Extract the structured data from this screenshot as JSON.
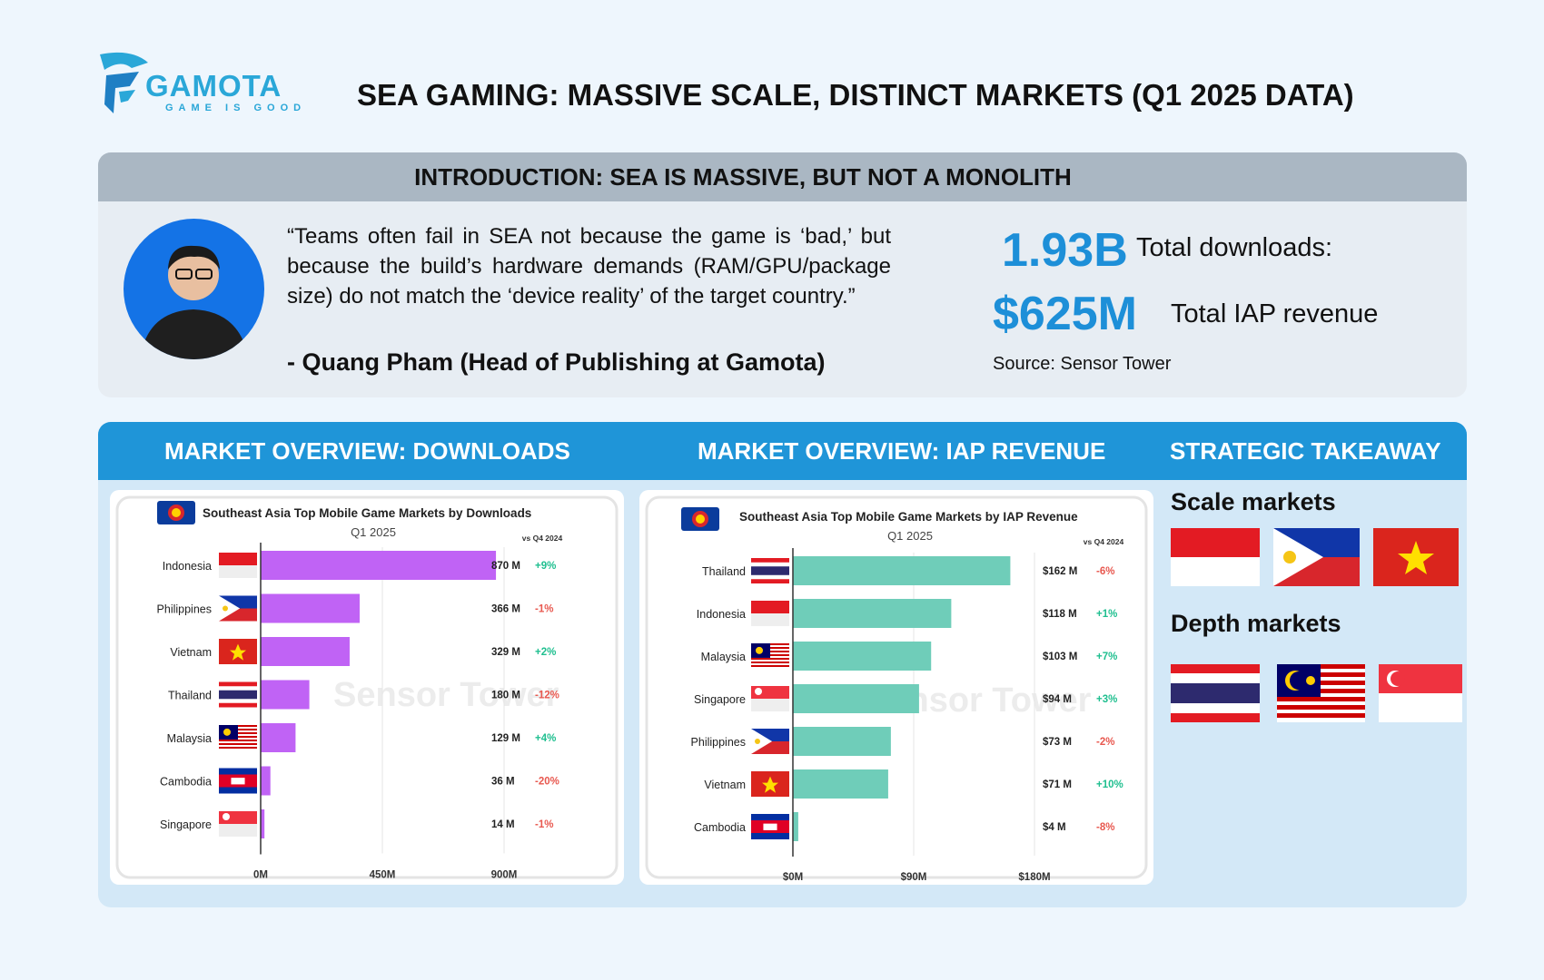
{
  "brand": {
    "name": "GAMOTA",
    "tagline": "GAME IS GOOD"
  },
  "title": "SEA GAMING: MASSIVE SCALE, DISTINCT MARKETS (Q1 2025 DATA)",
  "intro": {
    "heading": "INTRODUCTION: SEA IS MASSIVE, BUT NOT A MONOLITH",
    "quote": "“Teams often fail in SEA not because the game is ‘bad,’ but because the build’s hardware demands (RAM/GPU/package size) do not match the ‘device reality’ of the target country.”",
    "author": "- Quang Pham (Head of Publishing at Gamota)",
    "stats": [
      {
        "value": "1.93B",
        "label": "Total downloads:"
      },
      {
        "value": "$625M",
        "label": "Total IAP revenue"
      }
    ],
    "source": "Source: Sensor Tower"
  },
  "market": {
    "downloads_heading": "MARKET OVERVIEW: DOWNLOADS",
    "revenue_heading": "MARKET OVERVIEW: IAP REVENUE",
    "takeaway_heading": "STRATEGIC TAKEAWAY",
    "scale_label": "Scale markets",
    "depth_label": "Depth markets",
    "scale_flags": [
      "Indonesia",
      "Philippines",
      "Vietnam"
    ],
    "depth_flags": [
      "Thailand",
      "Malaysia",
      "Singapore"
    ]
  },
  "chart_data": [
    {
      "type": "bar",
      "orientation": "horizontal",
      "title": "Southeast Asia Top Mobile Game Markets by Downloads",
      "subtitle": "Q1 2025",
      "comparison_label": "vs Q4 2024",
      "watermark": "Sensor Tower",
      "categories": [
        "Indonesia",
        "Philippines",
        "Vietnam",
        "Thailand",
        "Malaysia",
        "Cambodia",
        "Singapore"
      ],
      "values": [
        870,
        366,
        329,
        180,
        129,
        36,
        14
      ],
      "value_labels": [
        "870 M",
        "366 M",
        "329 M",
        "180 M",
        "129 M",
        "36 M",
        "14 M"
      ],
      "changes": [
        "+9%",
        "-1%",
        "+2%",
        "-12%",
        "+4%",
        "-20%",
        "-1%"
      ],
      "xlim": [
        0,
        900
      ],
      "xticks": [
        "0M",
        "450M",
        "900M"
      ],
      "bar_color": "#c063f5"
    },
    {
      "type": "bar",
      "orientation": "horizontal",
      "title": "Southeast Asia Top Mobile Game Markets by IAP Revenue",
      "subtitle": "Q1 2025",
      "comparison_label": "vs Q4 2024",
      "watermark": "Sensor Tower",
      "categories": [
        "Thailand",
        "Indonesia",
        "Malaysia",
        "Singapore",
        "Philippines",
        "Vietnam",
        "Cambodia"
      ],
      "values": [
        162,
        118,
        103,
        94,
        73,
        71,
        4
      ],
      "value_labels": [
        "$162 M",
        "$118 M",
        "$103 M",
        "$94 M",
        "$73 M",
        "$71 M",
        "$4 M"
      ],
      "changes": [
        "-6%",
        "+1%",
        "+7%",
        "+3%",
        "-2%",
        "+10%",
        "-8%"
      ],
      "xlim": [
        0,
        180
      ],
      "xticks": [
        "$0M",
        "$90M",
        "$180M"
      ],
      "bar_color": "#6fcdb9"
    }
  ],
  "colors": {
    "accent": "#1f95d8",
    "positive": "#1fbf8f",
    "negative": "#e8584f"
  }
}
